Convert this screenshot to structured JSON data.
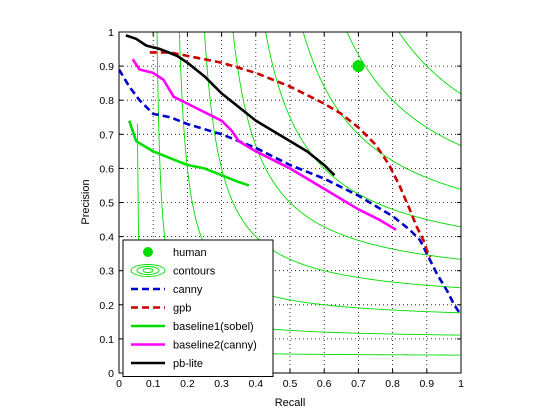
{
  "chart_data": {
    "type": "line",
    "title": "",
    "xlabel": "Recall",
    "ylabel": "Precision",
    "xlim": [
      0,
      1
    ],
    "ylim": [
      0,
      1
    ],
    "xticks": [
      "0",
      "0.1",
      "0.2",
      "0.3",
      "0.4",
      "0.5",
      "0.6",
      "0.7",
      "0.8",
      "0.9",
      "1"
    ],
    "yticks": [
      "0",
      "0.1",
      "0.2",
      "0.3",
      "0.4",
      "0.5",
      "0.6",
      "0.7",
      "0.8",
      "0.9",
      "1"
    ],
    "grid": true,
    "grid_style": "dotted",
    "legend_position": "bottom-left",
    "contour_levels": [
      0.1,
      0.2,
      0.3,
      0.4,
      0.5,
      0.6,
      0.7,
      0.8,
      0.9
    ],
    "series": [
      {
        "name": "human",
        "kind": "point",
        "color": "#00dd00",
        "points": [
          [
            0.7,
            0.9
          ]
        ]
      },
      {
        "name": "contours",
        "kind": "contour",
        "color": "#00dd00"
      },
      {
        "name": "canny",
        "kind": "line",
        "color": "#0000cc",
        "dash": "dashed",
        "points": [
          [
            0.0,
            0.89
          ],
          [
            0.03,
            0.84
          ],
          [
            0.06,
            0.8
          ],
          [
            0.1,
            0.76
          ],
          [
            0.15,
            0.75
          ],
          [
            0.2,
            0.73
          ],
          [
            0.3,
            0.7
          ],
          [
            0.4,
            0.66
          ],
          [
            0.5,
            0.61
          ],
          [
            0.6,
            0.57
          ],
          [
            0.7,
            0.52
          ],
          [
            0.75,
            0.49
          ],
          [
            0.8,
            0.46
          ],
          [
            0.85,
            0.42
          ],
          [
            0.88,
            0.39
          ],
          [
            0.9,
            0.35
          ],
          [
            0.93,
            0.29
          ],
          [
            0.96,
            0.24
          ],
          [
            0.98,
            0.2
          ],
          [
            1.0,
            0.17
          ]
        ]
      },
      {
        "name": "gpb",
        "kind": "line",
        "color": "#cc0000",
        "dash": "dashed",
        "points": [
          [
            0.09,
            0.94
          ],
          [
            0.15,
            0.94
          ],
          [
            0.2,
            0.93
          ],
          [
            0.3,
            0.91
          ],
          [
            0.4,
            0.88
          ],
          [
            0.5,
            0.84
          ],
          [
            0.6,
            0.79
          ],
          [
            0.65,
            0.76
          ],
          [
            0.7,
            0.72
          ],
          [
            0.75,
            0.67
          ],
          [
            0.79,
            0.61
          ],
          [
            0.82,
            0.55
          ],
          [
            0.85,
            0.48
          ],
          [
            0.87,
            0.43
          ],
          [
            0.89,
            0.39
          ],
          [
            0.9,
            0.36
          ],
          [
            0.91,
            0.34
          ]
        ]
      },
      {
        "name": "baseline1(sobel)",
        "kind": "line",
        "color": "#00dd00",
        "dash": "solid",
        "points": [
          [
            0.03,
            0.74
          ],
          [
            0.05,
            0.68
          ],
          [
            0.1,
            0.65
          ],
          [
            0.15,
            0.63
          ],
          [
            0.2,
            0.61
          ],
          [
            0.25,
            0.6
          ],
          [
            0.3,
            0.58
          ],
          [
            0.35,
            0.56
          ],
          [
            0.38,
            0.55
          ]
        ]
      },
      {
        "name": "baseline2(canny)",
        "kind": "line",
        "color": "#ff00ff",
        "dash": "solid",
        "points": [
          [
            0.04,
            0.92
          ],
          [
            0.06,
            0.89
          ],
          [
            0.1,
            0.88
          ],
          [
            0.13,
            0.86
          ],
          [
            0.16,
            0.81
          ],
          [
            0.2,
            0.79
          ],
          [
            0.3,
            0.74
          ],
          [
            0.33,
            0.71
          ],
          [
            0.35,
            0.68
          ],
          [
            0.4,
            0.65
          ],
          [
            0.5,
            0.6
          ],
          [
            0.6,
            0.54
          ],
          [
            0.7,
            0.48
          ],
          [
            0.76,
            0.45
          ],
          [
            0.81,
            0.42
          ]
        ]
      },
      {
        "name": "pb-lite",
        "kind": "line",
        "color": "#000000",
        "dash": "solid",
        "points": [
          [
            0.02,
            0.99
          ],
          [
            0.05,
            0.98
          ],
          [
            0.08,
            0.96
          ],
          [
            0.12,
            0.95
          ],
          [
            0.17,
            0.93
          ],
          [
            0.2,
            0.91
          ],
          [
            0.25,
            0.87
          ],
          [
            0.3,
            0.82
          ],
          [
            0.35,
            0.78
          ],
          [
            0.4,
            0.74
          ],
          [
            0.45,
            0.71
          ],
          [
            0.5,
            0.68
          ],
          [
            0.55,
            0.65
          ],
          [
            0.6,
            0.61
          ],
          [
            0.63,
            0.58
          ]
        ]
      }
    ]
  }
}
